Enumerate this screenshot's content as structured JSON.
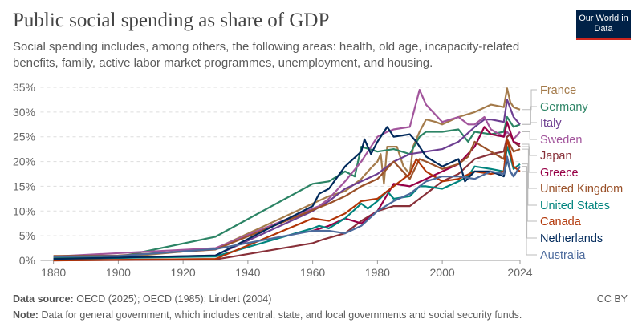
{
  "header": {
    "title": "Public social spending as share of GDP",
    "subtitle": "Social spending includes, among others, the following areas: health, old age, incapacity-related benefits, family, active labor market programmes, unemployment, and housing.",
    "logo": "Our World in Data"
  },
  "footer": {
    "source_label": "Data source:",
    "source": "OECD (2025); OECD (1985); Lindert (2004)",
    "note_label": "Note:",
    "note": "Data for general government, which includes central, state, and local governments and social security funds.",
    "license": "CC BY"
  },
  "chart_data": {
    "type": "line",
    "title": "Public social spending as share of GDP",
    "xlim": [
      1876,
      2024
    ],
    "ylim": [
      0,
      35
    ],
    "x_ticks": [
      "1880",
      "1900",
      "1920",
      "1940",
      "1960",
      "1980",
      "2000",
      "2024"
    ],
    "y_ticks": [
      "0%",
      "5%",
      "10%",
      "15%",
      "20%",
      "25%",
      "30%",
      "35%"
    ],
    "grid": "horizontal dashed",
    "legend": "right",
    "series": [
      {
        "name": "France",
        "color": "#a47b4b",
        "points": [
          [
            1880,
            0.5
          ],
          [
            1900,
            0.6
          ],
          [
            1930,
            2.4
          ],
          [
            1960,
            11.5
          ],
          [
            1965,
            13
          ],
          [
            1970,
            14
          ],
          [
            1975,
            16.5
          ],
          [
            1978,
            18.7
          ],
          [
            1980,
            20
          ],
          [
            1981,
            21.5
          ],
          [
            1982,
            15.5
          ],
          [
            1983,
            23
          ],
          [
            1986,
            23
          ],
          [
            1988,
            19
          ],
          [
            1990,
            17.5
          ],
          [
            1991,
            23
          ],
          [
            1993,
            26
          ],
          [
            1995,
            28.5
          ],
          [
            1998,
            28
          ],
          [
            2000,
            27.5
          ],
          [
            2005,
            29
          ],
          [
            2010,
            30
          ],
          [
            2015,
            31.5
          ],
          [
            2019,
            31
          ],
          [
            2020,
            34.8
          ],
          [
            2021,
            32
          ],
          [
            2022,
            31
          ],
          [
            2024,
            30.5
          ]
        ]
      },
      {
        "name": "Germany",
        "color": "#2c8465",
        "points": [
          [
            1880,
            0.5
          ],
          [
            1900,
            0.7
          ],
          [
            1930,
            4.8
          ],
          [
            1960,
            15.5
          ],
          [
            1965,
            16
          ],
          [
            1970,
            18
          ],
          [
            1973,
            17
          ],
          [
            1975,
            23
          ],
          [
            1980,
            22
          ],
          [
            1985,
            22.5
          ],
          [
            1990,
            21.5
          ],
          [
            1993,
            25
          ],
          [
            1995,
            26
          ],
          [
            2000,
            26
          ],
          [
            2005,
            26.5
          ],
          [
            2008,
            24
          ],
          [
            2010,
            26
          ],
          [
            2015,
            25.5
          ],
          [
            2019,
            26
          ],
          [
            2020,
            29
          ],
          [
            2022,
            27
          ],
          [
            2024,
            27.5
          ]
        ]
      },
      {
        "name": "Italy",
        "color": "#6d3e91",
        "points": [
          [
            1880,
            0.2
          ],
          [
            1930,
            1
          ],
          [
            1960,
            10
          ],
          [
            1965,
            12
          ],
          [
            1970,
            14.5
          ],
          [
            1975,
            16
          ],
          [
            1980,
            17.5
          ],
          [
            1985,
            20
          ],
          [
            1990,
            21.5
          ],
          [
            1995,
            22
          ],
          [
            2000,
            22.5
          ],
          [
            2005,
            24
          ],
          [
            2010,
            27
          ],
          [
            2013,
            28.5
          ],
          [
            2015,
            28.5
          ],
          [
            2019,
            28
          ],
          [
            2020,
            32.5
          ],
          [
            2022,
            29
          ],
          [
            2024,
            27.5
          ]
        ]
      },
      {
        "name": "Sweden",
        "color": "#a2559c",
        "points": [
          [
            1880,
            0.8
          ],
          [
            1930,
            2.5
          ],
          [
            1960,
            10.5
          ],
          [
            1962,
            11
          ],
          [
            1965,
            12.5
          ],
          [
            1970,
            16
          ],
          [
            1975,
            20
          ],
          [
            1980,
            25
          ],
          [
            1983,
            26
          ],
          [
            1985,
            26.5
          ],
          [
            1990,
            27
          ],
          [
            1993,
            34.5
          ],
          [
            1995,
            31.5
          ],
          [
            2000,
            28
          ],
          [
            2005,
            29
          ],
          [
            2008,
            27.5
          ],
          [
            2010,
            27.5
          ],
          [
            2013,
            29
          ],
          [
            2015,
            26.5
          ],
          [
            2019,
            25
          ],
          [
            2020,
            26
          ],
          [
            2022,
            24.5
          ],
          [
            2024,
            26
          ]
        ]
      },
      {
        "name": "Japan",
        "color": "#883039",
        "points": [
          [
            1880,
            0
          ],
          [
            1930,
            0.2
          ],
          [
            1960,
            3.5
          ],
          [
            1963,
            4.2
          ],
          [
            1970,
            5.5
          ],
          [
            1975,
            8
          ],
          [
            1980,
            10
          ],
          [
            1985,
            11
          ],
          [
            1990,
            11
          ],
          [
            1995,
            13.5
          ],
          [
            2000,
            16
          ],
          [
            2005,
            17.5
          ],
          [
            2010,
            20.5
          ],
          [
            2015,
            21.5
          ],
          [
            2019,
            22
          ],
          [
            2020,
            25
          ],
          [
            2021,
            25.5
          ],
          [
            2022,
            24
          ],
          [
            2024,
            23
          ]
        ]
      },
      {
        "name": "Greece",
        "color": "#970046",
        "points": [
          [
            1960,
            6
          ],
          [
            1965,
            7
          ],
          [
            1970,
            8.5
          ],
          [
            1975,
            7.5
          ],
          [
            1980,
            10
          ],
          [
            1985,
            15.5
          ],
          [
            1990,
            15
          ],
          [
            1995,
            16.5
          ],
          [
            2000,
            18
          ],
          [
            2005,
            19.5
          ],
          [
            2010,
            23
          ],
          [
            2013,
            27
          ],
          [
            2015,
            25.5
          ],
          [
            2019,
            25
          ],
          [
            2020,
            28
          ],
          [
            2021,
            26
          ],
          [
            2022,
            24
          ],
          [
            2024,
            23.5
          ]
        ]
      },
      {
        "name": "United Kingdom",
        "color": "#9a5129",
        "points": [
          [
            1880,
            0.9
          ],
          [
            1900,
            1
          ],
          [
            1930,
            2.2
          ],
          [
            1960,
            10.2
          ],
          [
            1965,
            11.5
          ],
          [
            1970,
            13
          ],
          [
            1975,
            15
          ],
          [
            1980,
            16.5
          ],
          [
            1985,
            20
          ],
          [
            1990,
            16.5
          ],
          [
            1993,
            20.5
          ],
          [
            1995,
            20
          ],
          [
            2000,
            18.5
          ],
          [
            2005,
            19.5
          ],
          [
            2008,
            21
          ],
          [
            2010,
            24
          ],
          [
            2015,
            22
          ],
          [
            2019,
            20.5
          ],
          [
            2020,
            24.5
          ],
          [
            2022,
            22
          ],
          [
            2024,
            22.5
          ]
        ]
      },
      {
        "name": "United States",
        "color": "#00847e",
        "points": [
          [
            1880,
            0.3
          ],
          [
            1900,
            0.5
          ],
          [
            1930,
            0.8
          ],
          [
            1960,
            6.5
          ],
          [
            1962,
            7
          ],
          [
            1965,
            6.5
          ],
          [
            1970,
            8.5
          ],
          [
            1975,
            11.5
          ],
          [
            1977,
            10.5
          ],
          [
            1980,
            12
          ],
          [
            1983,
            14
          ],
          [
            1985,
            12.5
          ],
          [
            1990,
            13
          ],
          [
            1993,
            15
          ],
          [
            1995,
            15
          ],
          [
            2000,
            14.5
          ],
          [
            2005,
            16
          ],
          [
            2008,
            17
          ],
          [
            2010,
            19
          ],
          [
            2015,
            18.5
          ],
          [
            2019,
            18
          ],
          [
            2020,
            23
          ],
          [
            2021,
            21
          ],
          [
            2022,
            18.5
          ],
          [
            2024,
            19.5
          ]
        ]
      },
      {
        "name": "Canada",
        "color": "#b13507",
        "points": [
          [
            1880,
            0
          ],
          [
            1930,
            0.3
          ],
          [
            1960,
            8.5
          ],
          [
            1965,
            8
          ],
          [
            1970,
            9.5
          ],
          [
            1975,
            12
          ],
          [
            1980,
            12.5
          ],
          [
            1985,
            15
          ],
          [
            1990,
            17.5
          ],
          [
            1992,
            20.5
          ],
          [
            1995,
            18
          ],
          [
            2000,
            16
          ],
          [
            2005,
            16.5
          ],
          [
            2010,
            18
          ],
          [
            2015,
            17.5
          ],
          [
            2019,
            18
          ],
          [
            2020,
            24.5
          ],
          [
            2021,
            22
          ],
          [
            2022,
            19
          ],
          [
            2024,
            18
          ]
        ]
      },
      {
        "name": "Netherlands",
        "color": "#00295b",
        "points": [
          [
            1880,
            0.3
          ],
          [
            1930,
            1
          ],
          [
            1960,
            11
          ],
          [
            1962,
            13.5
          ],
          [
            1965,
            14.5
          ],
          [
            1970,
            19
          ],
          [
            1975,
            22
          ],
          [
            1976,
            24.5
          ],
          [
            1978,
            21.5
          ],
          [
            1980,
            24
          ],
          [
            1983,
            27
          ],
          [
            1985,
            25
          ],
          [
            1990,
            25.5
          ],
          [
            1992,
            24
          ],
          [
            1995,
            21
          ],
          [
            2000,
            19
          ],
          [
            2005,
            20.5
          ],
          [
            2007,
            16
          ],
          [
            2010,
            18
          ],
          [
            2015,
            18
          ],
          [
            2019,
            17
          ],
          [
            2020,
            20.5
          ],
          [
            2021,
            18
          ],
          [
            2022,
            17
          ],
          [
            2024,
            19
          ]
        ]
      },
      {
        "name": "Australia",
        "color": "#4c6a9c",
        "points": [
          [
            1880,
            0.8
          ],
          [
            1900,
            0.9
          ],
          [
            1930,
            2.3
          ],
          [
            1960,
            6
          ],
          [
            1965,
            6
          ],
          [
            1970,
            5.5
          ],
          [
            1975,
            7
          ],
          [
            1980,
            10
          ],
          [
            1985,
            12
          ],
          [
            1990,
            13.5
          ],
          [
            1995,
            16
          ],
          [
            2000,
            17
          ],
          [
            2005,
            17
          ],
          [
            2010,
            16.5
          ],
          [
            2015,
            18
          ],
          [
            2019,
            17.5
          ],
          [
            2020,
            21
          ],
          [
            2021,
            18
          ],
          [
            2022,
            17
          ],
          [
            2024,
            19
          ]
        ]
      }
    ]
  }
}
